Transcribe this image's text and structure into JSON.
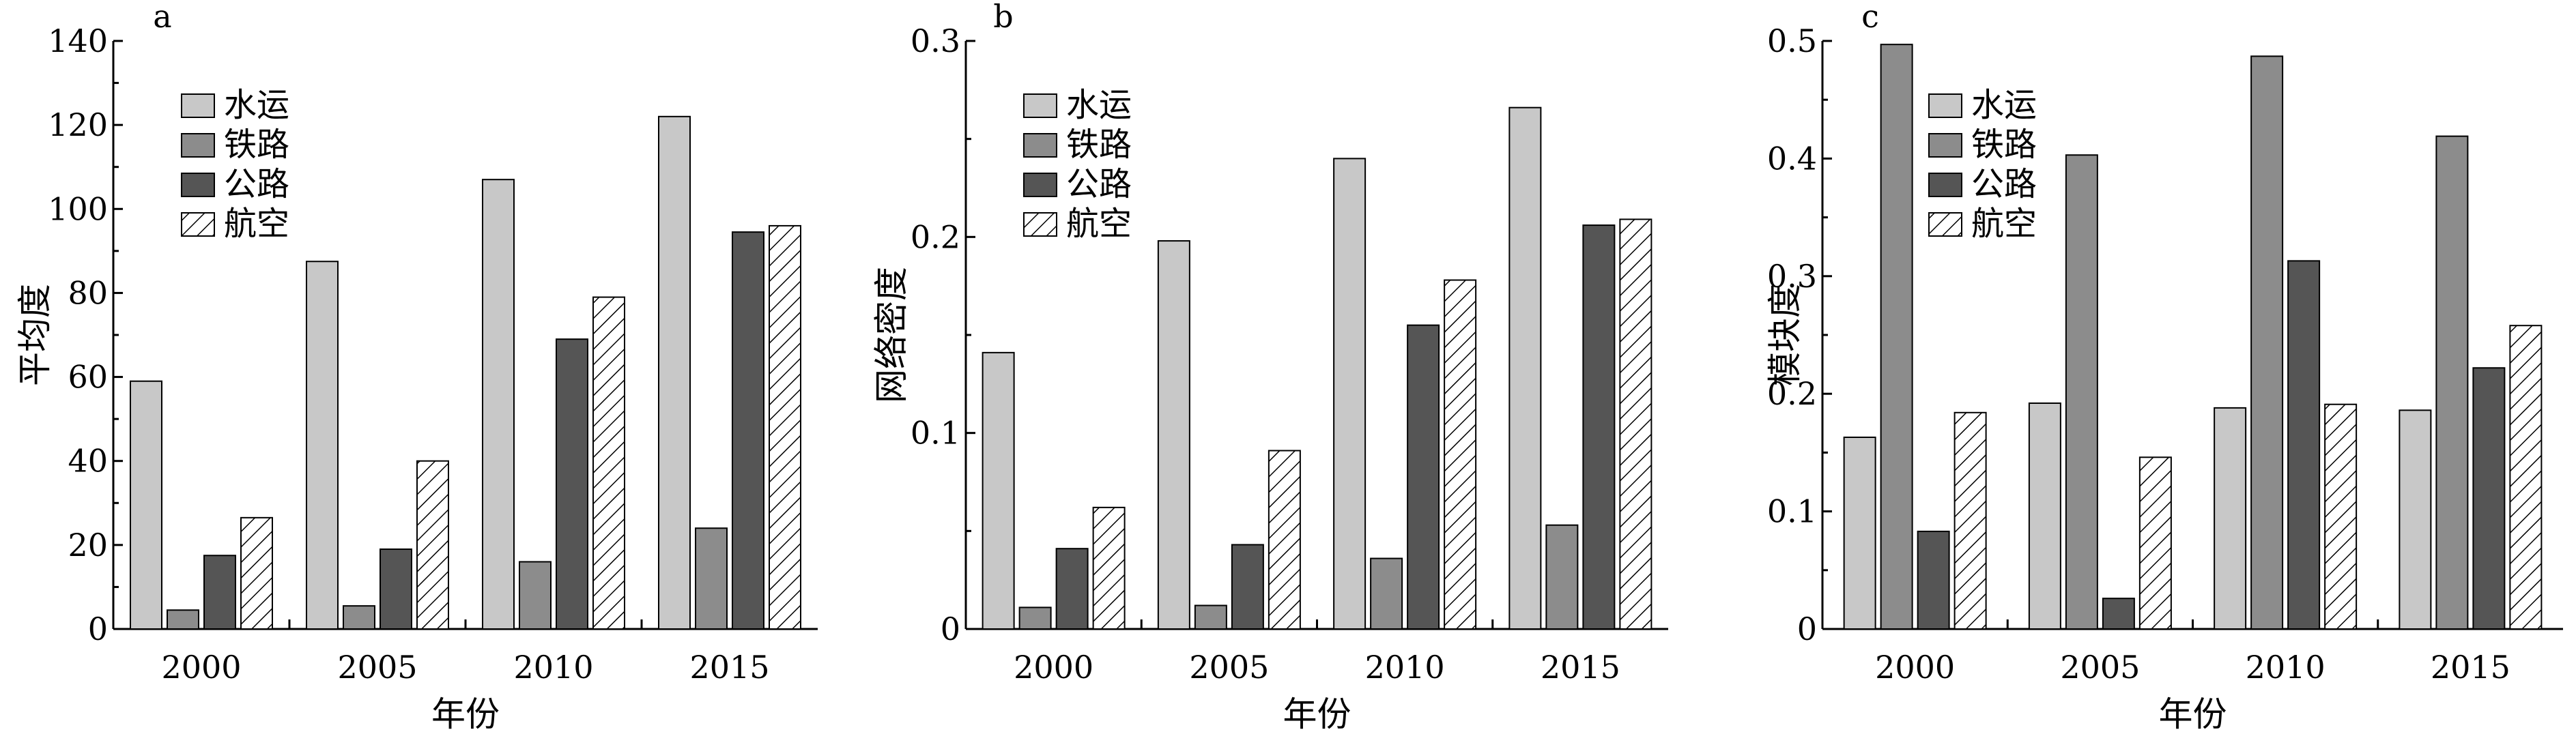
{
  "chart_data": [
    {
      "type": "bar",
      "panel": "a",
      "categories": [
        "2000",
        "2005",
        "2010",
        "2015"
      ],
      "series": [
        {
          "name": "水运",
          "values": [
            59,
            87.5,
            107,
            122
          ]
        },
        {
          "name": "铁路",
          "values": [
            4.5,
            5.5,
            16,
            24
          ]
        },
        {
          "name": "公路",
          "values": [
            17.5,
            19,
            69,
            94.5
          ]
        },
        {
          "name": "航空",
          "values": [
            26.5,
            40,
            79,
            96
          ]
        }
      ],
      "xlabel": "年份",
      "ylabel": "平均度",
      "ylim": [
        0,
        140
      ],
      "yticks": [
        "0",
        "20",
        "40",
        "60",
        "80",
        "100",
        "120",
        "140"
      ],
      "grid": false,
      "legend_position": "top-left"
    },
    {
      "type": "bar",
      "panel": "b",
      "categories": [
        "2000",
        "2005",
        "2010",
        "2015"
      ],
      "series": [
        {
          "name": "水运",
          "values": [
            0.141,
            0.198,
            0.24,
            0.266
          ]
        },
        {
          "name": "铁路",
          "values": [
            0.011,
            0.012,
            0.036,
            0.053
          ]
        },
        {
          "name": "公路",
          "values": [
            0.041,
            0.043,
            0.155,
            0.206
          ]
        },
        {
          "name": "航空",
          "values": [
            0.062,
            0.091,
            0.178,
            0.209
          ]
        }
      ],
      "xlabel": "年份",
      "ylabel": "网络密度",
      "ylim": [
        0,
        0.3
      ],
      "yticks": [
        "0",
        "0.1",
        "0.2",
        "0.3"
      ],
      "grid": false,
      "legend_position": "top-left"
    },
    {
      "type": "bar",
      "panel": "c",
      "categories": [
        "2000",
        "2005",
        "2010",
        "2015"
      ],
      "series": [
        {
          "name": "水运",
          "values": [
            0.163,
            0.192,
            0.188,
            0.186
          ]
        },
        {
          "name": "铁路",
          "values": [
            0.497,
            0.403,
            0.487,
            0.419
          ]
        },
        {
          "name": "公路",
          "values": [
            0.083,
            0.026,
            0.313,
            0.222
          ]
        },
        {
          "name": "航空",
          "values": [
            0.184,
            0.146,
            0.191,
            0.258
          ]
        }
      ],
      "xlabel": "年份",
      "ylabel": "模块度",
      "ylim": [
        0,
        0.5
      ],
      "yticks": [
        "0",
        "0.1",
        "0.2",
        "0.3",
        "0.4",
        "0.5"
      ],
      "grid": false,
      "legend_position": "top-left"
    }
  ],
  "colors": {
    "水运": "#c8c8c8",
    "铁路": "#8c8c8c",
    "公路": "#555555",
    "航空": "hatched"
  }
}
